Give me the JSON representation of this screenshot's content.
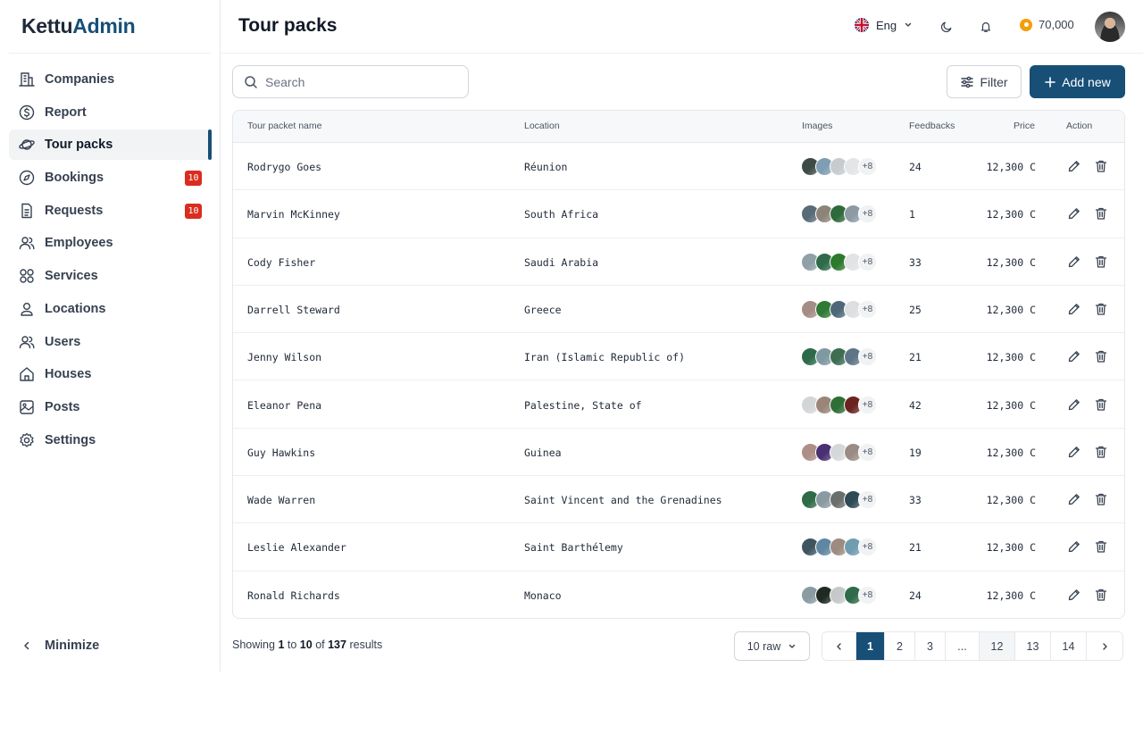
{
  "brand": {
    "part1": "Kettu",
    "part2": "Admin"
  },
  "header": {
    "title": "Tour packs",
    "language": "Eng",
    "coins": "70,000"
  },
  "sidebar": {
    "items": [
      {
        "label": "Companies",
        "icon": "building-icon"
      },
      {
        "label": "Report",
        "icon": "dollar-circle-icon"
      },
      {
        "label": "Tour packs",
        "icon": "planet-icon",
        "active": true
      },
      {
        "label": "Bookings",
        "icon": "compass-icon",
        "badge": "10"
      },
      {
        "label": "Requests",
        "icon": "document-icon",
        "badge": "10"
      },
      {
        "label": "Employees",
        "icon": "users-icon"
      },
      {
        "label": "Services",
        "icon": "grid-icon"
      },
      {
        "label": "Locations",
        "icon": "location-icon"
      },
      {
        "label": "Users",
        "icon": "users-icon"
      },
      {
        "label": "Houses",
        "icon": "house-icon"
      },
      {
        "label": "Posts",
        "icon": "image-icon"
      },
      {
        "label": "Settings",
        "icon": "gear-icon"
      }
    ],
    "minimize_label": "Minimize"
  },
  "toolbar": {
    "search_placeholder": "Search",
    "filter_label": "Filter",
    "add_label": "Add new"
  },
  "table": {
    "columns": [
      "Tour packet name",
      "Location",
      "Images",
      "Feedbacks",
      "Price",
      "Action"
    ],
    "rows": [
      {
        "name": "Rodrygo Goes",
        "location": "Réunion",
        "more": "+8",
        "feedbacks": "24",
        "price": "12,300 C",
        "thumbs": [
          "#3d4a45",
          "#7f9eb3",
          "#c7cbcd",
          "#e3e5e6"
        ]
      },
      {
        "name": "Marvin McKinney",
        "location": "South Africa",
        "more": "+8",
        "feedbacks": "1",
        "price": "12,300 C",
        "thumbs": [
          "#596b78",
          "#8c8478",
          "#2f6a3a",
          "#8d9aa3"
        ]
      },
      {
        "name": "Cody Fisher",
        "location": "Saudi Arabia",
        "more": "+8",
        "feedbacks": "33",
        "price": "12,300 C",
        "thumbs": [
          "#8fa0a8",
          "#2f6b4a",
          "#2d7a2d",
          "#e1e3e4"
        ]
      },
      {
        "name": "Darrell Steward",
        "location": "Greece",
        "more": "+8",
        "feedbacks": "25",
        "price": "12,300 C",
        "thumbs": [
          "#a58d86",
          "#2f7a35",
          "#4e6878",
          "#dcdfe0"
        ]
      },
      {
        "name": "Jenny Wilson",
        "location": "Iran (Islamic Republic of)",
        "more": "+8",
        "feedbacks": "21",
        "price": "12,300 C",
        "thumbs": [
          "#2c6a4a",
          "#7f99a3",
          "#3e6d52",
          "#5d7586"
        ]
      },
      {
        "name": "Eleanor Pena",
        "location": "Palestine, State of",
        "more": "+8",
        "feedbacks": "42",
        "price": "12,300 C",
        "thumbs": [
          "#d3d6d7",
          "#9b8578",
          "#2f6e35",
          "#6b2320"
        ]
      },
      {
        "name": "Guy Hawkins",
        "location": "Guinea",
        "more": "+8",
        "feedbacks": "19",
        "price": "12,300 C",
        "thumbs": [
          "#ad8f88",
          "#4a2f72",
          "#d5d8da",
          "#9a8c84"
        ]
      },
      {
        "name": "Wade Warren",
        "location": "Saint Vincent and the Grenadines",
        "more": "+8",
        "feedbacks": "33",
        "price": "12,300 C",
        "thumbs": [
          "#2e6b46",
          "#8a9aa3",
          "#6b6f6c",
          "#2d4a55"
        ]
      },
      {
        "name": "Leslie Alexander",
        "location": "Saint Barthélemy",
        "more": "+8",
        "feedbacks": "21",
        "price": "12,300 C",
        "thumbs": [
          "#3e5560",
          "#5f87a3",
          "#9d8a80",
          "#6e9db0"
        ]
      },
      {
        "name": "Ronald Richards",
        "location": "Monaco",
        "more": "+8",
        "feedbacks": "24",
        "price": "12,300 C",
        "thumbs": [
          "#8a9ba2",
          "#1e2a22",
          "#c5c9cb",
          "#2f6b4a"
        ]
      }
    ]
  },
  "footer": {
    "showing_prefix": "Showing",
    "from": "1",
    "to_word": "to",
    "to": "10",
    "of_word": "of",
    "total": "137",
    "results_word": "results",
    "per_page": "10 raw",
    "pages": [
      "1",
      "2",
      "3",
      "...",
      "12",
      "13",
      "14"
    ],
    "current_page": "1"
  },
  "colors": {
    "accent": "#174f77",
    "badge": "#d92d20",
    "coin": "#f59e0b"
  }
}
